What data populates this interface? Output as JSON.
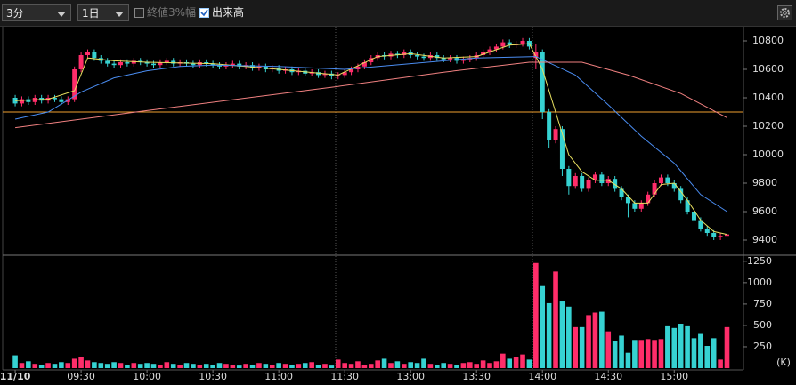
{
  "toolbar": {
    "interval": "3分",
    "range": "1日",
    "option_close_range": "終値3%幅",
    "option_volume": "出来高"
  },
  "chart_data": {
    "type": "candlestick",
    "up_color": "#ff2d6a",
    "down_color": "#36d2d2",
    "xlim": [
      -1.9,
      110.5
    ],
    "xticks": [
      {
        "value": 0,
        "label": "11/10"
      },
      {
        "value": 10,
        "label": "09:30"
      },
      {
        "value": 20,
        "label": "10:00"
      },
      {
        "value": 30,
        "label": "10:30"
      },
      {
        "value": 40,
        "label": "11:00"
      },
      {
        "value": 50,
        "label": "11:30"
      },
      {
        "value": 60,
        "label": "13:00"
      },
      {
        "value": 70,
        "label": "13:30"
      },
      {
        "value": 80,
        "label": "14:00"
      },
      {
        "value": 90,
        "label": "14:30"
      },
      {
        "value": 100,
        "label": "15:00"
      }
    ],
    "ylim": [
      9300,
      10900
    ],
    "yticks": [
      9400,
      9600,
      9800,
      10000,
      10200,
      10400,
      10600,
      10800
    ],
    "volume_ylim": [
      0,
      1290
    ],
    "volume_yticks": [
      250,
      500,
      750,
      1000,
      1250
    ],
    "volume_unit": "(K)",
    "open": [
      10400,
      10360,
      10390,
      10370,
      10400,
      10380,
      10400,
      10390,
      10370,
      10390,
      10600,
      10700,
      10720,
      10680,
      10660,
      10640,
      10630,
      10650,
      10640,
      10660,
      10650,
      10640,
      10630,
      10650,
      10660,
      10640,
      10650,
      10640,
      10630,
      10650,
      10640,
      10630,
      10620,
      10630,
      10640,
      10620,
      10630,
      10610,
      10620,
      10600,
      10610,
      10590,
      10600,
      10580,
      10590,
      10570,
      10580,
      10560,
      10570,
      10550,
      10560,
      10580,
      10600,
      10620,
      10650,
      10680,
      10700,
      10690,
      10710,
      10700,
      10720,
      10700,
      10690,
      10680,
      10700,
      10680,
      10670,
      10680,
      10660,
      10670,
      10680,
      10700,
      10720,
      10740,
      10760,
      10790,
      10770,
      10780,
      10800,
      10680,
      10720,
      10300,
      10100,
      10180,
      9900,
      9780,
      9850,
      9760,
      9820,
      9860,
      9800,
      9830,
      9760,
      9700,
      9660,
      9620,
      9660,
      9720,
      9800,
      9840,
      9800,
      9760,
      9680,
      9600,
      9540,
      9480,
      9450,
      9420,
      9430
    ],
    "high": [
      10420,
      10410,
      10410,
      10420,
      10420,
      10420,
      10420,
      10410,
      10410,
      10620,
      10720,
      10740,
      10740,
      10700,
      10680,
      10660,
      10670,
      10670,
      10680,
      10680,
      10670,
      10660,
      10670,
      10680,
      10680,
      10670,
      10670,
      10660,
      10670,
      10670,
      10660,
      10650,
      10650,
      10660,
      10660,
      10650,
      10650,
      10640,
      10640,
      10630,
      10630,
      10620,
      10620,
      10610,
      10610,
      10600,
      10600,
      10590,
      10590,
      10580,
      10600,
      10620,
      10640,
      10670,
      10700,
      10720,
      10720,
      10730,
      10730,
      10740,
      10740,
      10720,
      10710,
      10720,
      10720,
      10700,
      10700,
      10700,
      10690,
      10700,
      10720,
      10740,
      10760,
      10780,
      10810,
      10810,
      10800,
      10820,
      10820,
      10780,
      10740,
      10320,
      10200,
      10200,
      9920,
      9870,
      9870,
      9840,
      9880,
      9880,
      9850,
      9850,
      9780,
      9720,
      9680,
      9680,
      9740,
      9820,
      9860,
      9860,
      9820,
      9780,
      9700,
      9620,
      9560,
      9500,
      9470,
      9450,
      9460
    ],
    "low": [
      10340,
      10340,
      10350,
      10350,
      10360,
      10360,
      10370,
      10350,
      10350,
      10370,
      10580,
      10680,
      10660,
      10640,
      10620,
      10610,
      10610,
      10620,
      10620,
      10630,
      10620,
      10610,
      10610,
      10630,
      10620,
      10620,
      10620,
      10610,
      10610,
      10620,
      10610,
      10600,
      10600,
      10610,
      10600,
      10600,
      10590,
      10590,
      10580,
      10580,
      10570,
      10570,
      10560,
      10560,
      10550,
      10550,
      10540,
      10540,
      10530,
      10530,
      10540,
      10560,
      10580,
      10600,
      10630,
      10660,
      10670,
      10670,
      10680,
      10680,
      10680,
      10670,
      10660,
      10660,
      10660,
      10650,
      10650,
      10640,
      10640,
      10650,
      10660,
      10680,
      10700,
      10720,
      10740,
      10750,
      10750,
      10760,
      10740,
      10600,
      10250,
      10050,
      10080,
      9850,
      9720,
      9760,
      9740,
      9740,
      9800,
      9780,
      9780,
      9740,
      9680,
      9560,
      9600,
      9600,
      9640,
      9700,
      9780,
      9780,
      9740,
      9660,
      9580,
      9520,
      9460,
      9430,
      9400,
      9400,
      9410
    ],
    "close": [
      10360,
      10390,
      10370,
      10400,
      10380,
      10400,
      10390,
      10370,
      10390,
      10600,
      10700,
      10720,
      10680,
      10660,
      10640,
      10630,
      10650,
      10640,
      10660,
      10650,
      10640,
      10630,
      10650,
      10660,
      10640,
      10650,
      10640,
      10630,
      10650,
      10640,
      10630,
      10620,
      10630,
      10640,
      10620,
      10630,
      10610,
      10620,
      10600,
      10610,
      10590,
      10600,
      10580,
      10590,
      10570,
      10580,
      10560,
      10570,
      10550,
      10560,
      10580,
      10600,
      10620,
      10650,
      10680,
      10700,
      10690,
      10710,
      10700,
      10720,
      10700,
      10690,
      10680,
      10700,
      10680,
      10670,
      10680,
      10660,
      10670,
      10680,
      10700,
      10720,
      10740,
      10760,
      10790,
      10770,
      10780,
      10800,
      10760,
      10720,
      10300,
      10100,
      10180,
      9900,
      9780,
      9850,
      9760,
      9820,
      9860,
      9800,
      9830,
      9760,
      9700,
      9660,
      9620,
      9660,
      9720,
      9800,
      9840,
      9800,
      9760,
      9680,
      9600,
      9540,
      9480,
      9450,
      9420,
      9430,
      9440
    ],
    "volume": [
      150,
      60,
      80,
      50,
      40,
      60,
      50,
      70,
      60,
      110,
      130,
      90,
      70,
      60,
      50,
      70,
      60,
      40,
      60,
      50,
      60,
      50,
      40,
      70,
      50,
      40,
      60,
      50,
      40,
      50,
      40,
      60,
      50,
      40,
      30,
      50,
      40,
      60,
      50,
      40,
      60,
      50,
      40,
      50,
      60,
      70,
      40,
      50,
      30,
      100,
      60,
      50,
      80,
      40,
      50,
      90,
      110,
      60,
      80,
      50,
      70,
      60,
      110,
      50,
      40,
      60,
      50,
      40,
      60,
      70,
      50,
      90,
      60,
      80,
      170,
      110,
      130,
      160,
      100,
      1230,
      960,
      760,
      1130,
      780,
      720,
      480,
      480,
      620,
      650,
      660,
      430,
      320,
      380,
      180,
      330,
      330,
      340,
      330,
      340,
      490,
      470,
      520,
      490,
      350,
      400,
      260,
      350,
      100,
      480
    ],
    "reference_line": {
      "value": 10300,
      "color": "#f0a030"
    },
    "moving_averages": [
      {
        "color": "#e8e060",
        "x": [
          0,
          5,
          9,
          11,
          15,
          20,
          30,
          40,
          49,
          55,
          60,
          65,
          70,
          75,
          78,
          80,
          82,
          84,
          86,
          88,
          90,
          92,
          94,
          96,
          98,
          100,
          102,
          104,
          106,
          108
        ],
        "values": [
          10380,
          10390,
          10450,
          10680,
          10660,
          10650,
          10640,
          10600,
          10560,
          10690,
          10710,
          10680,
          10690,
          10770,
          10780,
          10600,
          10300,
          10000,
          9880,
          9820,
          9820,
          9760,
          9660,
          9660,
          9790,
          9800,
          9680,
          9540,
          9460,
          9440
        ]
      },
      {
        "color": "#4a8cf0",
        "x": [
          0,
          5,
          10,
          15,
          20,
          25,
          30,
          40,
          50,
          60,
          70,
          79,
          85,
          90,
          95,
          100,
          104,
          108
        ],
        "values": [
          10250,
          10300,
          10440,
          10540,
          10590,
          10620,
          10630,
          10620,
          10600,
          10640,
          10680,
          10690,
          10560,
          10350,
          10130,
          9940,
          9720,
          9600
        ]
      },
      {
        "color": "#f08080",
        "x": [
          0,
          20,
          49,
          65,
          78,
          86,
          93,
          101,
          108
        ],
        "values": [
          10190,
          10310,
          10480,
          10580,
          10650,
          10650,
          10560,
          10430,
          10260
        ]
      }
    ]
  }
}
